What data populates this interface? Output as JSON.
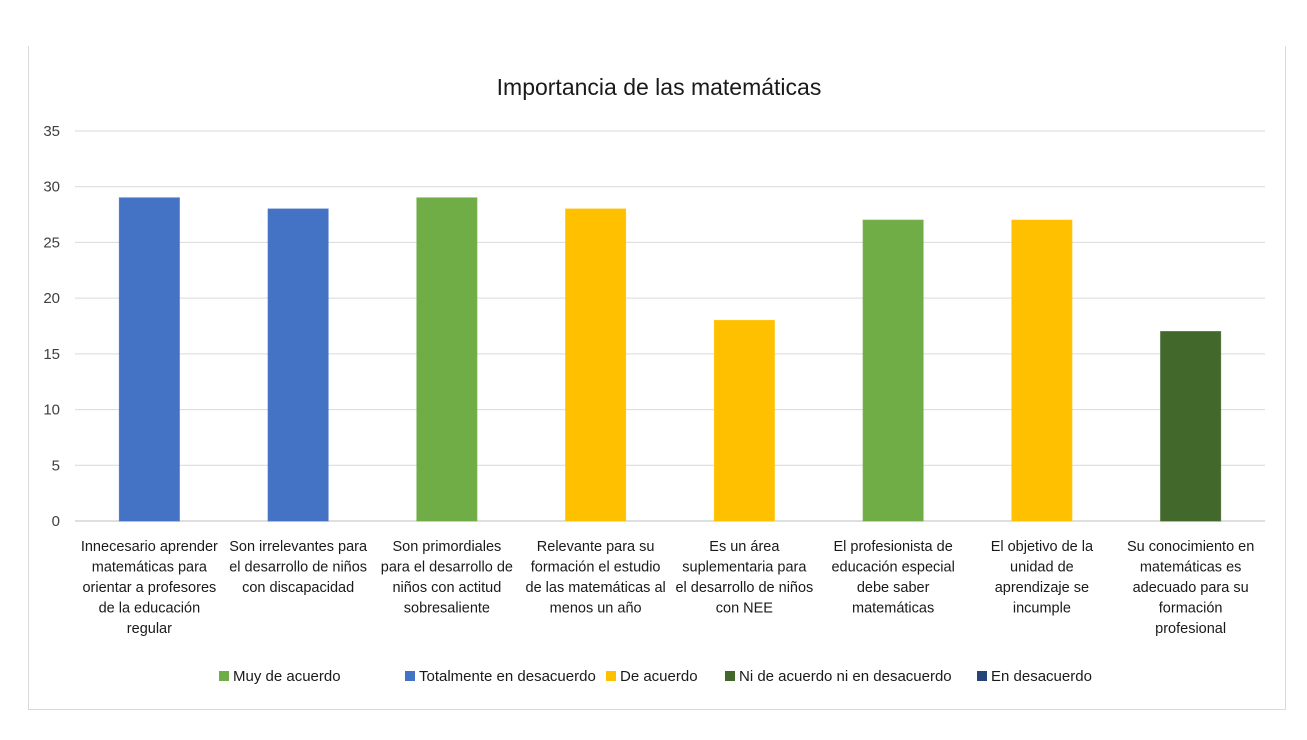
{
  "chart_data": {
    "type": "bar",
    "title": "Importancia de las matemáticas",
    "xlabel": "",
    "ylabel": "",
    "ylim": [
      0,
      35
    ],
    "yticks": [
      0,
      5,
      10,
      15,
      20,
      25,
      30,
      35
    ],
    "grid": true,
    "legend_position": "bottom",
    "categories": [
      [
        "Innecesario aprender",
        "matemáticas  para",
        "orientar a profesores",
        "de la educación",
        "regular"
      ],
      [
        "Son irrelevantes para",
        "el desarrollo de niños",
        "con discapacidad"
      ],
      [
        "Son primordiales",
        "para el desarrollo de",
        "niños con actitud",
        "sobresaliente"
      ],
      [
        "Relevante para su",
        "formación el estudio",
        "de las matemáticas  al",
        "menos un año"
      ],
      [
        "Es un área",
        "suplementaria para",
        "el desarrollo de niños",
        "con NEE"
      ],
      [
        "El profesionista de",
        "educación especial",
        "debe saber",
        "matemáticas"
      ],
      [
        "El objetivo de la",
        "unidad de",
        "aprendizaje se",
        "incumple"
      ],
      [
        "Su conocimiento en",
        "matemáticas  es",
        "adecuado para su",
        "formación",
        "profesional"
      ]
    ],
    "values": [
      29,
      28,
      29,
      28,
      18,
      27,
      27,
      17
    ],
    "bar_series": [
      "Totalmente en desacuerdo",
      "Totalmente en desacuerdo",
      "Muy de acuerdo",
      "De acuerdo",
      "De acuerdo",
      "Muy de acuerdo",
      "De acuerdo",
      "Ni de acuerdo ni en desacuerdo"
    ],
    "series": [
      {
        "name": "Muy de acuerdo",
        "color": "#70AD47"
      },
      {
        "name": "Totalmente en desacuerdo",
        "color": "#4472C4"
      },
      {
        "name": "De acuerdo",
        "color": "#FFC000"
      },
      {
        "name": "Ni de acuerdo ni en desacuerdo",
        "color": "#43682B"
      },
      {
        "name": "En desacuerdo",
        "color": "#264478"
      }
    ]
  }
}
